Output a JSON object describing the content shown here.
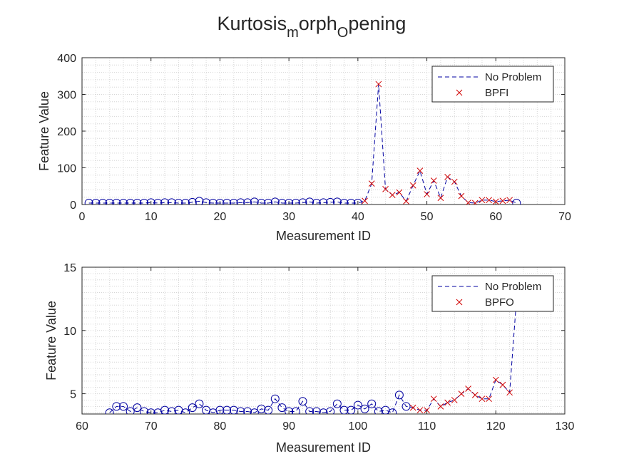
{
  "chart_data": [
    {
      "type": "scatter",
      "title_main": "Kurtosis",
      "title_sub1": "m",
      "title_mid": "orph",
      "title_sub2": "O",
      "title_end": "pening",
      "xlabel": "Measurement ID",
      "ylabel": "Feature Value",
      "xlim": [
        0,
        70
      ],
      "ylim": [
        0,
        400
      ],
      "xticks": [
        0,
        10,
        20,
        30,
        40,
        50,
        60,
        70
      ],
      "yticks": [
        0,
        100,
        200,
        300,
        400
      ],
      "grid": true,
      "legend_position": "top-right",
      "series": [
        {
          "name": "No Problem",
          "style": "dashed-line-with-circles",
          "color": "#0000a0",
          "x": [
            1,
            2,
            3,
            4,
            5,
            6,
            7,
            8,
            9,
            10,
            11,
            12,
            13,
            14,
            15,
            16,
            17,
            18,
            19,
            20,
            21,
            22,
            23,
            24,
            25,
            26,
            27,
            28,
            29,
            30,
            31,
            32,
            33,
            34,
            35,
            36,
            37,
            38,
            39,
            40,
            41,
            42,
            43,
            44,
            45,
            46,
            47,
            48,
            49,
            50,
            51,
            52,
            53,
            54,
            55,
            56,
            57,
            58,
            59,
            60,
            61,
            62,
            63
          ],
          "y": [
            4,
            4,
            4,
            4,
            4,
            4,
            4,
            4,
            4,
            5,
            4,
            5,
            5,
            4,
            4,
            6,
            9,
            5,
            4,
            4,
            4,
            4,
            5,
            5,
            7,
            4,
            4,
            7,
            4,
            4,
            4,
            5,
            7,
            4,
            5,
            6,
            7,
            4,
            4,
            4,
            10,
            57,
            328,
            42,
            26,
            33,
            9,
            52,
            92,
            28,
            65,
            18,
            75,
            62,
            23,
            5,
            4,
            12,
            12,
            8,
            10,
            12,
            4
          ],
          "circle_x": [
            1,
            2,
            3,
            4,
            5,
            6,
            7,
            8,
            9,
            10,
            11,
            12,
            13,
            14,
            15,
            16,
            17,
            18,
            19,
            20,
            21,
            22,
            23,
            24,
            25,
            26,
            27,
            28,
            29,
            30,
            31,
            32,
            33,
            34,
            35,
            36,
            37,
            38,
            39,
            40,
            63
          ],
          "circle_y": [
            4,
            4,
            4,
            4,
            4,
            4,
            4,
            4,
            4,
            5,
            4,
            5,
            5,
            4,
            4,
            6,
            9,
            5,
            4,
            4,
            4,
            4,
            5,
            5,
            7,
            4,
            4,
            7,
            4,
            4,
            4,
            5,
            7,
            4,
            5,
            6,
            7,
            4,
            4,
            4,
            4
          ]
        },
        {
          "name": "BPFI",
          "style": "x-markers",
          "color": "#d00000",
          "x": [
            41,
            42,
            43,
            44,
            45,
            46,
            47,
            48,
            49,
            50,
            51,
            52,
            53,
            54,
            55,
            56,
            57,
            58,
            59,
            60,
            61,
            62
          ],
          "y": [
            10,
            57,
            328,
            42,
            26,
            33,
            9,
            52,
            92,
            28,
            65,
            18,
            75,
            62,
            23,
            5,
            4,
            12,
            12,
            8,
            10,
            12
          ]
        }
      ]
    },
    {
      "type": "scatter",
      "xlabel": "Measurement ID",
      "ylabel": "Feature Value",
      "xlim": [
        60,
        130
      ],
      "ylim": [
        3.4,
        15
      ],
      "xticks": [
        60,
        70,
        80,
        90,
        100,
        110,
        120,
        130
      ],
      "yticks": [
        5,
        10,
        15
      ],
      "grid": true,
      "legend_position": "top-right",
      "series": [
        {
          "name": "No Problem",
          "style": "dashed-line-with-circles",
          "color": "#0000a0",
          "x": [
            64,
            65,
            66,
            67,
            68,
            69,
            70,
            71,
            72,
            73,
            74,
            75,
            76,
            77,
            78,
            79,
            80,
            81,
            82,
            83,
            84,
            85,
            86,
            87,
            88,
            89,
            90,
            91,
            92,
            93,
            94,
            95,
            96,
            97,
            98,
            99,
            100,
            101,
            102,
            103,
            104,
            105,
            106,
            107,
            108,
            109,
            110,
            111,
            112,
            113,
            114,
            115,
            116,
            117,
            118,
            119,
            120,
            121,
            122,
            123
          ],
          "y": [
            3.5,
            4.0,
            4.0,
            3.6,
            3.9,
            3.6,
            3.5,
            3.5,
            3.7,
            3.6,
            3.7,
            3.5,
            3.9,
            4.2,
            3.7,
            3.5,
            3.7,
            3.7,
            3.7,
            3.6,
            3.6,
            3.5,
            3.8,
            3.7,
            4.6,
            3.9,
            3.6,
            3.6,
            4.4,
            3.6,
            3.6,
            3.5,
            3.6,
            4.2,
            3.7,
            3.7,
            4.1,
            3.8,
            4.2,
            3.6,
            3.7,
            3.5,
            4.9,
            4.0,
            3.9,
            3.7,
            3.7,
            4.6,
            4.0,
            4.3,
            4.5,
            5.0,
            5.4,
            4.9,
            4.6,
            4.6,
            6.1,
            5.7,
            5.1,
            12.5
          ],
          "circle_x": [
            64,
            65,
            66,
            67,
            68,
            69,
            70,
            71,
            72,
            73,
            74,
            75,
            76,
            77,
            78,
            79,
            80,
            81,
            82,
            83,
            84,
            85,
            86,
            87,
            88,
            89,
            90,
            91,
            92,
            93,
            94,
            95,
            96,
            97,
            98,
            99,
            100,
            101,
            102,
            103,
            104,
            105,
            106,
            107
          ],
          "circle_y": [
            3.5,
            4.0,
            4.0,
            3.6,
            3.9,
            3.6,
            3.5,
            3.5,
            3.7,
            3.6,
            3.7,
            3.5,
            3.9,
            4.2,
            3.7,
            3.5,
            3.7,
            3.7,
            3.7,
            3.6,
            3.6,
            3.5,
            3.8,
            3.7,
            4.6,
            3.9,
            3.6,
            3.6,
            4.4,
            3.6,
            3.6,
            3.5,
            3.6,
            4.2,
            3.7,
            3.7,
            4.1,
            3.8,
            4.2,
            3.6,
            3.7,
            3.5,
            4.9,
            4.0
          ]
        },
        {
          "name": "BPFO",
          "style": "x-markers",
          "color": "#d00000",
          "x": [
            108,
            109,
            110,
            111,
            112,
            113,
            114,
            115,
            116,
            117,
            118,
            119,
            120,
            121,
            122
          ],
          "y": [
            3.9,
            3.7,
            3.7,
            4.6,
            4.0,
            4.3,
            4.5,
            5.0,
            5.4,
            4.9,
            4.6,
            4.6,
            6.1,
            5.7,
            5.1
          ]
        }
      ]
    }
  ]
}
